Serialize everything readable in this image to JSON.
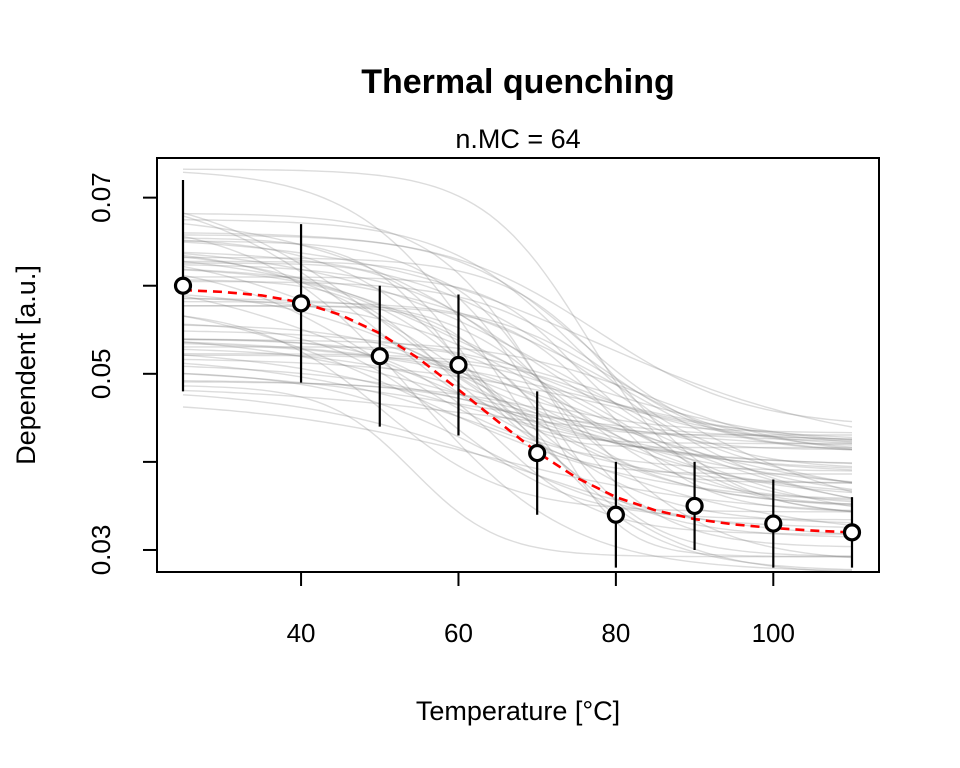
{
  "chart_data": {
    "type": "scatter",
    "title": "Thermal quenching",
    "subtitle": "n.MC = 64",
    "xlabel": "Temperature [°C]",
    "ylabel": "Dependent [a.u.]",
    "xlim": [
      25,
      110
    ],
    "ylim": [
      0.0275,
      0.0745
    ],
    "x_ticks": [
      40,
      60,
      80,
      100
    ],
    "x_tick_labels": [
      "40",
      "60",
      "80",
      "100"
    ],
    "y_ticks": [
      0.03,
      0.04,
      0.05,
      0.06,
      0.07
    ],
    "y_tick_labels": [
      "0.03",
      "",
      "0.05",
      "",
      "0.07"
    ],
    "grid": false,
    "points": [
      {
        "x": 25,
        "y": 0.06,
        "err_low": 0.048,
        "err_high": 0.072
      },
      {
        "x": 40,
        "y": 0.058,
        "err_low": 0.049,
        "err_high": 0.067
      },
      {
        "x": 50,
        "y": 0.052,
        "err_low": 0.044,
        "err_high": 0.06
      },
      {
        "x": 60,
        "y": 0.051,
        "err_low": 0.043,
        "err_high": 0.059
      },
      {
        "x": 70,
        "y": 0.041,
        "err_low": 0.034,
        "err_high": 0.048
      },
      {
        "x": 80,
        "y": 0.034,
        "err_low": 0.028,
        "err_high": 0.04
      },
      {
        "x": 90,
        "y": 0.035,
        "err_low": 0.03,
        "err_high": 0.04
      },
      {
        "x": 100,
        "y": 0.033,
        "err_low": 0.028,
        "err_high": 0.038
      },
      {
        "x": 110,
        "y": 0.032,
        "err_low": 0.028,
        "err_high": 0.036
      }
    ],
    "fit_curve": {
      "color": "#ff0000",
      "style": "dashed",
      "x": [
        25,
        30,
        35,
        40,
        45,
        50,
        55,
        60,
        65,
        70,
        75,
        80,
        85,
        90,
        95,
        100,
        105,
        110
      ],
      "y": [
        0.0595,
        0.0593,
        0.0589,
        0.0581,
        0.0567,
        0.0546,
        0.0517,
        0.0482,
        0.0446,
        0.0411,
        0.0382,
        0.036,
        0.0345,
        0.0335,
        0.0329,
        0.0325,
        0.0322,
        0.032
      ]
    },
    "mc_curves": {
      "count": 64,
      "color": "#808080"
    },
    "point_color": "#000000"
  }
}
